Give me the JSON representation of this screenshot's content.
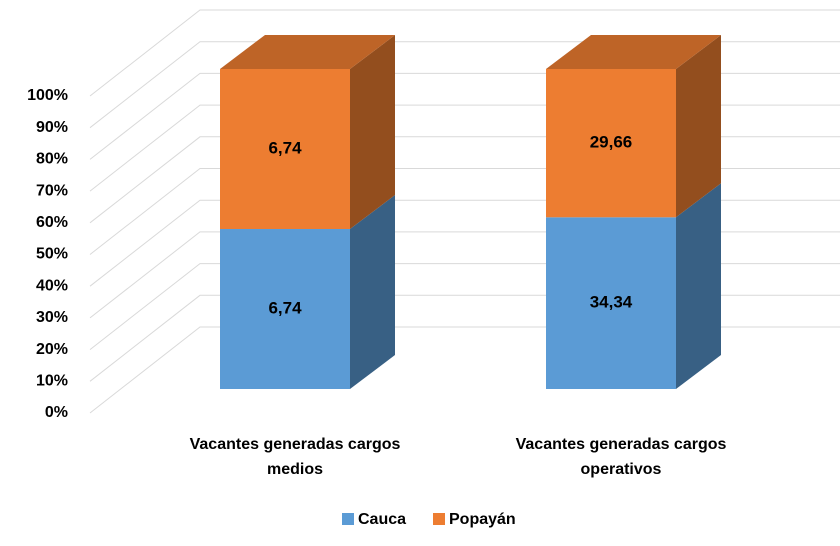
{
  "chart_data": {
    "type": "bar",
    "stacked": "percent",
    "categories": [
      "Vacantes generadas cargos medios",
      "Vacantes generadas cargos operativos"
    ],
    "series": [
      {
        "name": "Cauca",
        "color": "#5b9bd5",
        "values": [
          6.74,
          34.34
        ],
        "value_labels": [
          "6,74",
          "34,34"
        ]
      },
      {
        "name": "Popayán",
        "color": "#ed7d31",
        "values": [
          6.74,
          29.66
        ],
        "value_labels": [
          "6,74",
          "29,66"
        ]
      }
    ],
    "ylim": [
      0,
      100
    ],
    "yticks": [
      {
        "value": 0,
        "label": "0%"
      },
      {
        "value": 10,
        "label": "10%"
      },
      {
        "value": 20,
        "label": "20%"
      },
      {
        "value": 30,
        "label": "30%"
      },
      {
        "value": 40,
        "label": "40%"
      },
      {
        "value": 50,
        "label": "50%"
      },
      {
        "value": 60,
        "label": "60%"
      },
      {
        "value": 70,
        "label": "70%"
      },
      {
        "value": 80,
        "label": "80%"
      },
      {
        "value": 90,
        "label": "90%"
      },
      {
        "value": 100,
        "label": "100%"
      }
    ],
    "grid": true,
    "legend": "bottom"
  }
}
